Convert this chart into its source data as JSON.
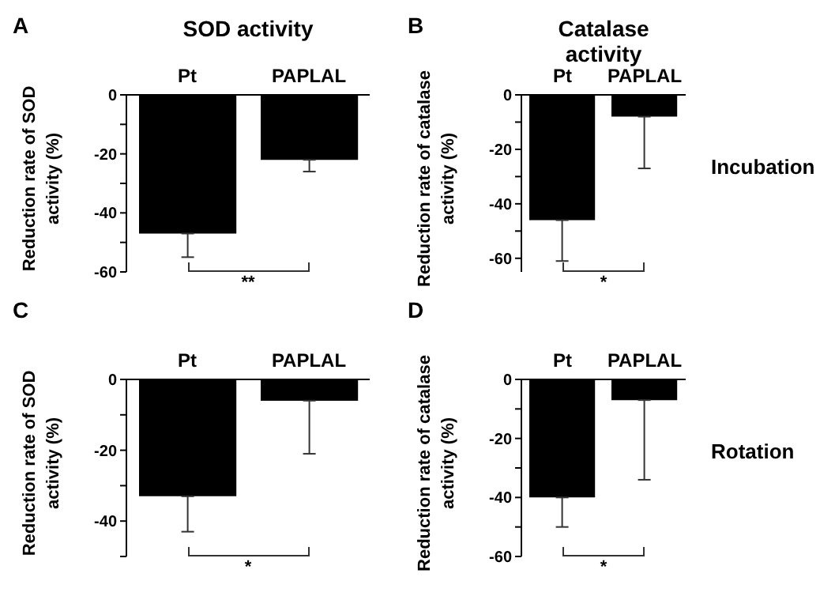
{
  "chart_data": [
    {
      "type": "bar",
      "title": "SOD activity",
      "ylabel": "Reduction rate of SOD activity (%)",
      "categories": [
        "Pt",
        "PAPLAL"
      ],
      "values": [
        -47,
        -22
      ],
      "errors": [
        [
          -55,
          -47
        ],
        [
          -26,
          -22
        ]
      ],
      "color": "#000000",
      "ylim": [
        -60,
        0
      ],
      "yticks": [
        0,
        {
          "value": -10,
          "label": null
        },
        -20,
        {
          "value": -30,
          "label": null
        },
        -40,
        {
          "value": -50,
          "label": null
        },
        -60
      ],
      "grid": false,
      "legend": false,
      "annotations": [
        "A",
        "**"
      ]
    },
    {
      "type": "bar",
      "title": "Catalase activity",
      "ylabel": "Reduction rate of catalase activity (%)",
      "categories": [
        "Pt",
        "PAPLAL"
      ],
      "values": [
        -46,
        -8
      ],
      "errors": [
        [
          -61,
          -46
        ],
        [
          -27,
          -8
        ]
      ],
      "color": "#000000",
      "ylim": [
        -65,
        0
      ],
      "yticks": [
        0,
        {
          "value": -10,
          "label": null
        },
        -20,
        {
          "value": -30,
          "label": null
        },
        -40,
        {
          "value": -50,
          "label": null
        },
        -60
      ],
      "grid": false,
      "legend": false,
      "annotations": [
        "B",
        "*",
        "Incubation"
      ]
    },
    {
      "type": "bar",
      "ylabel": "Reduction rate of SOD activity (%)",
      "categories": [
        "Pt",
        "PAPLAL"
      ],
      "values": [
        -33,
        -6
      ],
      "errors": [
        [
          -43,
          -33
        ],
        [
          -21,
          -6
        ]
      ],
      "color": "#000000",
      "ylim": [
        -50,
        0
      ],
      "yticks": [
        0,
        {
          "value": -10,
          "label": null
        },
        -20,
        {
          "value": -30,
          "label": null
        },
        -40,
        {
          "value": -50,
          "label": null
        }
      ],
      "grid": false,
      "legend": false,
      "annotations": [
        "C",
        "*"
      ]
    },
    {
      "type": "bar",
      "ylabel": "Reduction rate of catalase activity (%)",
      "categories": [
        "Pt",
        "PAPLAL"
      ],
      "values": [
        -40,
        -7
      ],
      "errors": [
        [
          -50,
          -40
        ],
        [
          -34,
          -7
        ]
      ],
      "color": "#000000",
      "ylim": [
        -60,
        0
      ],
      "yticks": [
        0,
        {
          "value": -10,
          "label": null
        },
        -20,
        {
          "value": -30,
          "label": null
        },
        -40,
        {
          "value": -50,
          "label": null
        },
        -60
      ],
      "grid": false,
      "legend": false,
      "annotations": [
        "D",
        "*",
        "Rotation"
      ]
    }
  ]
}
